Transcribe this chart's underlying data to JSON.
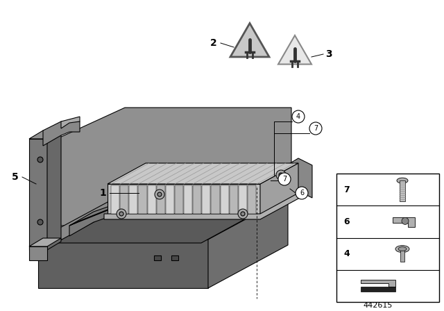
{
  "bg_color": "#ffffff",
  "line_color": "#000000",
  "diagram_number": "442615",
  "gray_tray_top": "#888888",
  "gray_tray_front": "#6a6a6a",
  "gray_tray_right": "#7a7a7a",
  "gray_module_top": "#c8c8c8",
  "gray_module_front": "#b8b8b8",
  "gray_module_right": "#a8a8a8",
  "gray_fin_light": "#d0d0d0",
  "gray_fin_dark": "#bcbcbc",
  "gray_bracket": "#888888",
  "gray_dark": "#555555"
}
